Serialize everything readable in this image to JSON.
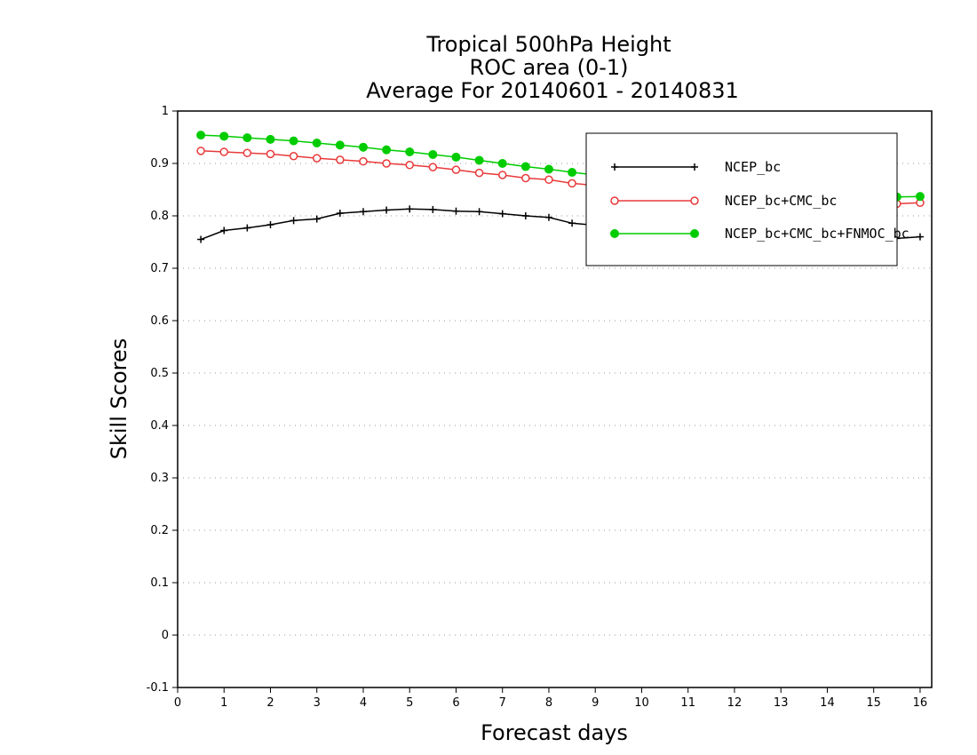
{
  "chart_data": {
    "type": "line",
    "title_lines": [
      "Tropical 500hPa Height",
      "ROC area (0-1)",
      "Average For 20140601 - 20140831"
    ],
    "xlabel": "Forecast days",
    "ylabel": "Skill Scores",
    "xlim": [
      0,
      16.25
    ],
    "ylim": [
      -0.1,
      1
    ],
    "x_ticks": [
      "0",
      "1",
      "2",
      "3",
      "4",
      "5",
      "6",
      "7",
      "8",
      "9",
      "10",
      "11",
      "12",
      "13",
      "14",
      "15",
      "16"
    ],
    "y_ticks": [
      "-0.1",
      "0",
      "0.1",
      "0.2",
      "0.3",
      "0.4",
      "0.5",
      "0.6",
      "0.7",
      "0.8",
      "0.9",
      "1"
    ],
    "y_tick_values": [
      -0.1,
      0,
      0.1,
      0.2,
      0.3,
      0.4,
      0.5,
      0.6,
      0.7,
      0.8,
      0.9,
      1
    ],
    "grid": "horizontal dotted",
    "legend_position": "top-right",
    "x": [
      0.5,
      1,
      1.5,
      2,
      2.5,
      3,
      3.5,
      4,
      4.5,
      5,
      5.5,
      6,
      6.5,
      7,
      7.5,
      8,
      8.5,
      9,
      9.5,
      10,
      10.5,
      11,
      11.5,
      12,
      12.5,
      13,
      13.5,
      14,
      14.5,
      15,
      15.5,
      16
    ],
    "series": [
      {
        "name": "NCEP_bc",
        "color": "#000000",
        "marker": "plus",
        "values": [
          0.755,
          0.772,
          0.777,
          0.783,
          0.791,
          0.794,
          0.805,
          0.808,
          0.811,
          0.813,
          0.812,
          0.809,
          0.808,
          0.804,
          0.8,
          0.797,
          0.786,
          0.782,
          0.779,
          0.776,
          0.773,
          0.771,
          0.769,
          0.767,
          0.765,
          0.763,
          0.761,
          0.76,
          0.758,
          0.757,
          0.757,
          0.76
        ]
      },
      {
        "name": "NCEP_bc+CMC_bc",
        "color": "#e8393a",
        "marker": "open-circle",
        "values": [
          0.924,
          0.922,
          0.92,
          0.918,
          0.914,
          0.91,
          0.907,
          0.904,
          0.9,
          0.897,
          0.893,
          0.888,
          0.882,
          0.878,
          0.872,
          0.869,
          0.862,
          0.858,
          0.854,
          0.85,
          0.846,
          0.843,
          0.84,
          0.837,
          0.834,
          0.831,
          0.829,
          0.827,
          0.825,
          0.824,
          0.823,
          0.825
        ]
      },
      {
        "name": "NCEP_bc+CMC_bc+FNMOC_bc",
        "color": "#00cc00",
        "marker": "filled-circle",
        "values": [
          0.954,
          0.952,
          0.949,
          0.946,
          0.943,
          0.939,
          0.935,
          0.931,
          0.926,
          0.922,
          0.917,
          0.912,
          0.906,
          0.9,
          0.894,
          0.889,
          0.883,
          0.878,
          0.873,
          0.868,
          0.863,
          0.859,
          0.855,
          0.852,
          0.849,
          0.846,
          0.843,
          0.841,
          0.839,
          0.838,
          0.836,
          0.837
        ]
      }
    ]
  }
}
